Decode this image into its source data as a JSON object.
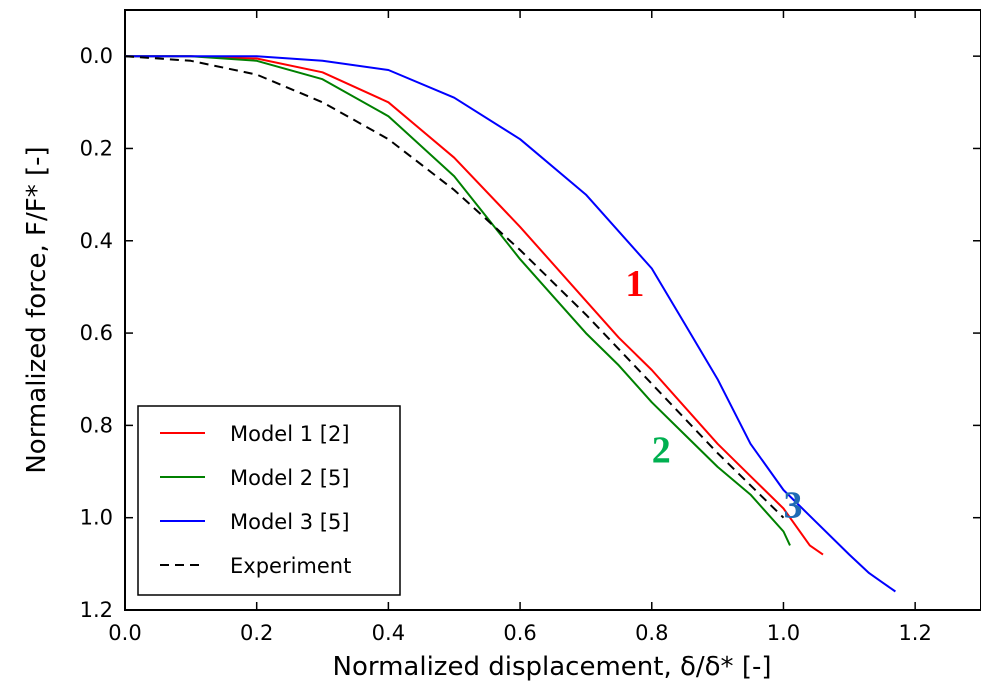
{
  "chart_data": {
    "type": "line",
    "xlabel": "Normalized displacement, δ/δ* [-]",
    "ylabel": "Normalized force,  F/F* [-]",
    "xlim": [
      0.0,
      1.3
    ],
    "ylim": [
      1.2,
      -0.1
    ],
    "y_inverted": true,
    "xticks": [
      "0.0",
      "0.2",
      "0.4",
      "0.6",
      "0.8",
      "1.0",
      "1.2"
    ],
    "yticks": [
      "0.0",
      "0.2",
      "0.4",
      "0.6",
      "0.8",
      "1.0",
      "1.2"
    ],
    "grid": false,
    "legend_position": "bottom-left",
    "series": [
      {
        "name": "Model 1 [2]",
        "color": "#ff0000",
        "dash": "solid",
        "x": [
          0.0,
          0.1,
          0.2,
          0.3,
          0.4,
          0.5,
          0.6,
          0.7,
          0.75,
          0.8,
          0.85,
          0.9,
          0.95,
          1.0,
          1.04,
          1.06
        ],
        "y": [
          0.0,
          0.0,
          0.005,
          0.035,
          0.1,
          0.22,
          0.37,
          0.53,
          0.61,
          0.68,
          0.76,
          0.84,
          0.91,
          0.98,
          1.06,
          1.08
        ]
      },
      {
        "name": "Model 2 [5]",
        "color": "#008000",
        "dash": "solid",
        "x": [
          0.0,
          0.1,
          0.2,
          0.3,
          0.4,
          0.5,
          0.55,
          0.6,
          0.65,
          0.7,
          0.75,
          0.8,
          0.85,
          0.9,
          0.95,
          1.0,
          1.01
        ],
        "y": [
          0.0,
          0.0,
          0.01,
          0.05,
          0.13,
          0.26,
          0.35,
          0.44,
          0.52,
          0.6,
          0.67,
          0.75,
          0.82,
          0.89,
          0.95,
          1.03,
          1.06
        ]
      },
      {
        "name": "Model 3 [5]",
        "color": "#0000ff",
        "dash": "solid",
        "x": [
          0.0,
          0.1,
          0.2,
          0.3,
          0.4,
          0.5,
          0.6,
          0.7,
          0.8,
          0.85,
          0.9,
          0.95,
          1.0,
          1.05,
          1.1,
          1.13,
          1.15,
          1.17
        ],
        "y": [
          0.0,
          0.0,
          0.0,
          0.01,
          0.03,
          0.09,
          0.18,
          0.3,
          0.46,
          0.58,
          0.7,
          0.84,
          0.94,
          1.01,
          1.08,
          1.12,
          1.14,
          1.16
        ]
      },
      {
        "name": "Experiment",
        "color": "#000000",
        "dash": "dashed",
        "x": [
          0.0,
          0.1,
          0.2,
          0.3,
          0.4,
          0.5,
          0.6,
          0.7,
          0.8,
          0.9,
          1.0
        ],
        "y": [
          0.0,
          0.01,
          0.04,
          0.1,
          0.18,
          0.29,
          0.42,
          0.56,
          0.71,
          0.86,
          1.0
        ]
      }
    ],
    "annotations": [
      {
        "text": "1",
        "x": 0.76,
        "y": 0.52,
        "color": "#ff0000"
      },
      {
        "text": "2",
        "x": 0.8,
        "y": 0.88,
        "color": "#00b050"
      },
      {
        "text": "3",
        "x": 1.0,
        "y": 1.0,
        "color": "#1f6bb5"
      }
    ]
  }
}
